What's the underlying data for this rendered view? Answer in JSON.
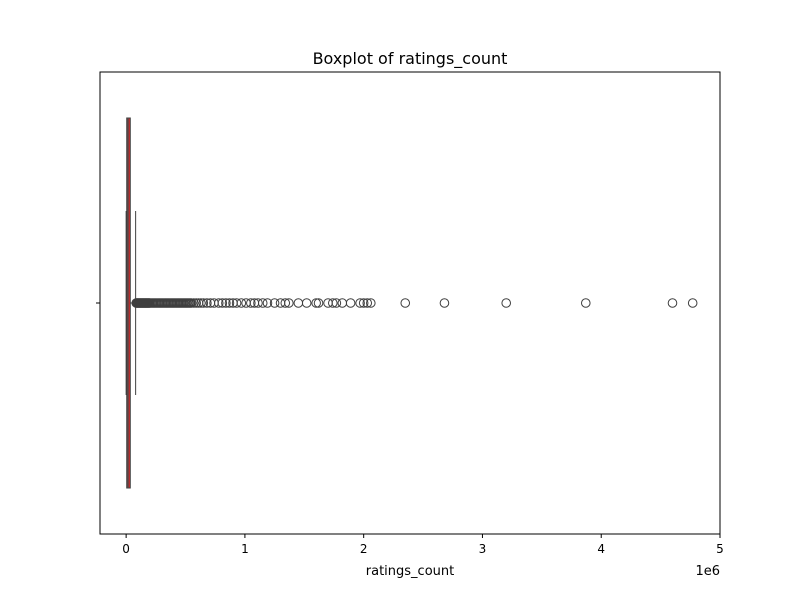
{
  "chart_data": {
    "type": "box",
    "orientation": "horizontal",
    "title": "Boxplot of ratings_count",
    "xlabel": "ratings_count",
    "ylabel": "",
    "x_scale_label": "1e6",
    "xlim": [
      -0.22,
      5.0
    ],
    "x_ticks": [
      0,
      1,
      2,
      3,
      4,
      5
    ],
    "x_tick_labels": [
      "0",
      "1",
      "2",
      "3",
      "4",
      "5"
    ],
    "grid": false,
    "legend": "none",
    "box_color": "#d62728",
    "median_color": "#4a4a4a",
    "box": {
      "q1": 0.005,
      "median": 0.015,
      "q3": 0.035,
      "whisker_low": 0.0,
      "whisker_high": 0.08
    },
    "outliers": [
      0.085,
      0.09,
      0.095,
      0.1,
      0.105,
      0.11,
      0.115,
      0.12,
      0.125,
      0.13,
      0.135,
      0.14,
      0.145,
      0.15,
      0.155,
      0.16,
      0.165,
      0.17,
      0.175,
      0.18,
      0.185,
      0.19,
      0.195,
      0.2,
      0.21,
      0.22,
      0.23,
      0.24,
      0.25,
      0.26,
      0.27,
      0.28,
      0.29,
      0.3,
      0.31,
      0.32,
      0.33,
      0.34,
      0.35,
      0.36,
      0.37,
      0.38,
      0.39,
      0.4,
      0.41,
      0.42,
      0.43,
      0.44,
      0.45,
      0.46,
      0.47,
      0.48,
      0.49,
      0.5,
      0.51,
      0.52,
      0.53,
      0.54,
      0.55,
      0.57,
      0.59,
      0.61,
      0.63,
      0.65,
      0.68,
      0.71,
      0.74,
      0.78,
      0.81,
      0.84,
      0.87,
      0.9,
      0.93,
      0.97,
      1.01,
      1.05,
      1.08,
      1.11,
      1.15,
      1.19,
      1.25,
      1.3,
      1.34,
      1.37,
      1.45,
      1.52,
      1.6,
      1.62,
      1.7,
      1.74,
      1.77,
      1.82,
      1.89,
      1.97,
      2.0,
      2.03,
      2.06,
      2.35,
      2.68,
      3.2,
      3.87,
      4.6,
      4.77
    ]
  }
}
